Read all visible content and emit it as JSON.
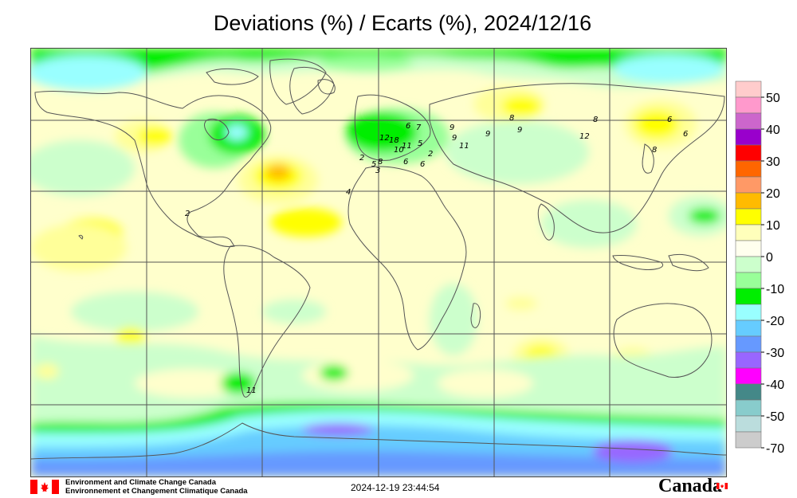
{
  "title": "Deviations (%) / Ecarts (%), 2024/12/16",
  "legend": {
    "labels": [
      "50",
      "40",
      "30",
      "20",
      "10",
      "0",
      "-10",
      "-20",
      "-30",
      "-40",
      "-50",
      "-70"
    ],
    "colors": [
      "#ffcccc",
      "#ff99cc",
      "#cc66cc",
      "#9900cc",
      "#ff0000",
      "#ff6600",
      "#ff9966",
      "#ffbb00",
      "#ffff00",
      "#ffffbb",
      "#ffffee",
      "#ccffcc",
      "#99ff99",
      "#00ee00",
      "#99ffff",
      "#66ccff",
      "#6699ff",
      "#9966ff",
      "#ff00ff",
      "#448888",
      "#88cccc",
      "#bbdddd",
      "#cccccc"
    ]
  },
  "station_labels": [
    {
      "text": "2"
    },
    {
      "text": "8"
    },
    {
      "text": "9"
    },
    {
      "text": "8"
    },
    {
      "text": "12"
    },
    {
      "text": "6"
    },
    {
      "text": "8"
    },
    {
      "text": "6"
    },
    {
      "text": "9"
    },
    {
      "text": "9"
    },
    {
      "text": "6"
    },
    {
      "text": "7"
    },
    {
      "text": "12"
    },
    {
      "text": "18"
    },
    {
      "text": "11"
    },
    {
      "text": "10"
    },
    {
      "text": "5"
    },
    {
      "text": "11"
    },
    {
      "text": "2"
    },
    {
      "text": "5"
    },
    {
      "text": "8"
    },
    {
      "text": "6"
    },
    {
      "text": "3"
    },
    {
      "text": "4"
    },
    {
      "text": "2"
    },
    {
      "text": "6"
    },
    {
      "text": "11"
    },
    {
      "text": "9"
    }
  ],
  "footer": {
    "agency_en": "Environment and Climate Change Canada",
    "agency_fr": "Environnement et Changement Climatique Canada",
    "timestamp": "2024-12-19 23:44:54",
    "wordmark": "Canada"
  },
  "icons": {
    "flag": "canada-flag-icon"
  }
}
